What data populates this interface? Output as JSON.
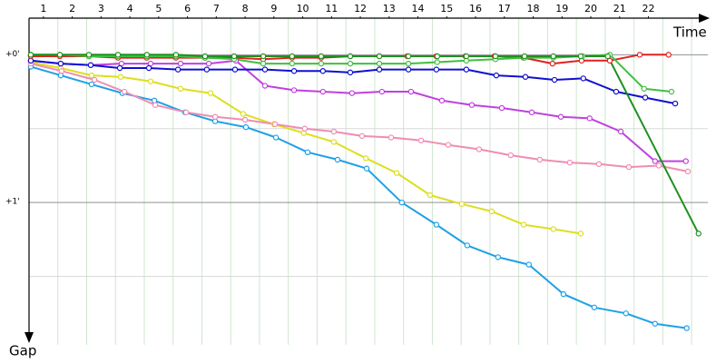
{
  "chart_data": {
    "type": "line",
    "x_label": "Time",
    "y_label": "Gap",
    "xlim": [
      0,
      23.5
    ],
    "ylim": [
      -0.26,
      2
    ],
    "xticks": [
      {
        "value": 0.5,
        "label": "1"
      },
      {
        "value": 1.5,
        "label": "2"
      },
      {
        "value": 2.5,
        "label": "3"
      },
      {
        "value": 3.5,
        "label": "4"
      },
      {
        "value": 4.5,
        "label": "5"
      },
      {
        "value": 5.5,
        "label": "6"
      },
      {
        "value": 6.5,
        "label": "7"
      },
      {
        "value": 7.5,
        "label": "8"
      },
      {
        "value": 8.5,
        "label": "9"
      },
      {
        "value": 9.5,
        "label": "10"
      },
      {
        "value": 10.5,
        "label": "11"
      },
      {
        "value": 11.5,
        "label": "12"
      },
      {
        "value": 12.5,
        "label": "13"
      },
      {
        "value": 13.5,
        "label": "14"
      },
      {
        "value": 14.5,
        "label": "15"
      },
      {
        "value": 15.5,
        "label": "16"
      },
      {
        "value": 16.5,
        "label": "17"
      },
      {
        "value": 17.5,
        "label": "18"
      },
      {
        "value": 18.5,
        "label": "19"
      },
      {
        "value": 19.5,
        "label": "20"
      },
      {
        "value": 20.5,
        "label": "21"
      },
      {
        "value": 21.5,
        "label": "22"
      }
    ],
    "yticks": [
      {
        "value": 0,
        "label": "+0'"
      },
      {
        "value": 1,
        "label": "+1'"
      }
    ],
    "minor_yticks": [
      0.5,
      1.5
    ],
    "grid": true,
    "series": [
      {
        "color": "#1ea0e6",
        "x": [
          0.06,
          1.1,
          2.17,
          3.24,
          4.35,
          5.42,
          6.46,
          7.53,
          8.57,
          9.67,
          10.71,
          11.72,
          12.94,
          14.14,
          15.21,
          16.28,
          17.35,
          18.55,
          19.62,
          20.72,
          21.73,
          22.83
        ],
        "values": [
          0.08,
          0.14,
          0.2,
          0.26,
          0.31,
          0.39,
          0.45,
          0.49,
          0.56,
          0.66,
          0.71,
          0.77,
          1.0,
          1.15,
          1.29,
          1.37,
          1.42,
          1.62,
          1.71,
          1.75,
          1.82,
          1.85
        ]
      },
      {
        "color": "#dede1e",
        "x": [
          0.06,
          1.1,
          2.17,
          3.18,
          4.22,
          5.26,
          6.3,
          7.43,
          8.5,
          9.54,
          10.58,
          11.69,
          12.76,
          13.92,
          15.02,
          16.06,
          17.17,
          18.2,
          19.15
        ],
        "values": [
          0.05,
          0.09,
          0.14,
          0.15,
          0.18,
          0.23,
          0.26,
          0.4,
          0.47,
          0.53,
          0.59,
          0.7,
          0.8,
          0.95,
          1.01,
          1.06,
          1.15,
          1.18,
          1.21
        ]
      },
      {
        "color": "#f08cb4",
        "x": [
          0.06,
          1.13,
          2.27,
          3.31,
          4.38,
          5.45,
          6.46,
          7.5,
          8.54,
          9.57,
          10.58,
          11.56,
          12.57,
          13.61,
          14.55,
          15.62,
          16.72,
          17.73,
          18.77,
          19.78,
          20.82,
          21.86,
          22.87
        ],
        "values": [
          0.06,
          0.11,
          0.17,
          0.25,
          0.34,
          0.39,
          0.42,
          0.44,
          0.47,
          0.5,
          0.52,
          0.55,
          0.56,
          0.58,
          0.61,
          0.64,
          0.68,
          0.71,
          0.73,
          0.74,
          0.76,
          0.75,
          0.79
        ]
      },
      {
        "color": "#c040e0",
        "x": [
          0.06,
          1.1,
          2.14,
          3.21,
          4.22,
          5.26,
          6.24,
          7.18,
          8.19,
          9.2,
          10.2,
          11.21,
          12.25,
          13.26,
          14.33,
          15.37,
          16.41,
          17.45,
          18.46,
          19.46,
          20.54,
          21.73,
          22.8
        ],
        "values": [
          0.04,
          0.06,
          0.07,
          0.06,
          0.06,
          0.06,
          0.06,
          0.04,
          0.21,
          0.24,
          0.25,
          0.26,
          0.25,
          0.25,
          0.31,
          0.34,
          0.36,
          0.39,
          0.42,
          0.43,
          0.52,
          0.72,
          0.72
        ]
      },
      {
        "color": "#1010d0",
        "x": [
          0.06,
          1.1,
          2.14,
          3.15,
          4.16,
          5.17,
          6.17,
          7.15,
          8.19,
          9.2,
          10.2,
          11.15,
          12.16,
          13.17,
          14.14,
          15.18,
          16.22,
          17.23,
          18.24,
          19.24,
          20.38,
          21.39,
          22.43
        ],
        "values": [
          0.04,
          0.06,
          0.07,
          0.09,
          0.09,
          0.1,
          0.1,
          0.1,
          0.1,
          0.11,
          0.11,
          0.12,
          0.1,
          0.1,
          0.1,
          0.1,
          0.14,
          0.15,
          0.17,
          0.16,
          0.25,
          0.29,
          0.33
        ]
      },
      {
        "color": "#e02020",
        "x": [
          0.06,
          1.07,
          2.08,
          3.09,
          4.09,
          5.1,
          6.11,
          7.12,
          8.13,
          9.13,
          10.14,
          11.15,
          12.16,
          13.13,
          14.14,
          15.15,
          16.16,
          17.17,
          18.17,
          19.18,
          20.16,
          21.2,
          22.2
        ],
        "values": [
          0.01,
          0.01,
          0.01,
          0.02,
          0.02,
          0.02,
          0.02,
          0.02,
          0.03,
          0.02,
          0.02,
          0.01,
          0.01,
          0.01,
          0.01,
          0.01,
          0.01,
          0.02,
          0.06,
          0.04,
          0.04,
          0,
          0
        ]
      },
      {
        "color": "#40c040",
        "x": [
          0.06,
          1.07,
          2.08,
          3.09,
          4.09,
          5.1,
          6.11,
          7.12,
          8.13,
          9.13,
          10.14,
          11.15,
          12.16,
          13.17,
          14.17,
          15.18,
          16.19,
          17.2,
          18.2,
          19.21,
          20.16,
          21.35,
          22.3
        ],
        "values": [
          0,
          0,
          0.01,
          0.01,
          0.01,
          0.01,
          0.02,
          0.03,
          0.06,
          0.06,
          0.06,
          0.06,
          0.06,
          0.06,
          0.05,
          0.04,
          0.03,
          0.02,
          0.02,
          0.01,
          0,
          0.23,
          0.25
        ]
      },
      {
        "color": "#209020",
        "x": [
          0.06,
          1.07,
          2.08,
          3.09,
          4.09,
          5.1,
          6.11,
          7.12,
          8.13,
          9.13,
          10.14,
          11.15,
          12.16,
          13.17,
          14.17,
          15.18,
          16.19,
          17.2,
          18.2,
          19.15,
          20.09,
          23.24
        ],
        "values": [
          0,
          0,
          0,
          0,
          0,
          0,
          0.01,
          0.01,
          0.01,
          0.01,
          0.01,
          0.01,
          0.01,
          0.01,
          0.01,
          0.01,
          0.01,
          0.01,
          0.01,
          0.01,
          0.01,
          1.21
        ]
      }
    ]
  }
}
